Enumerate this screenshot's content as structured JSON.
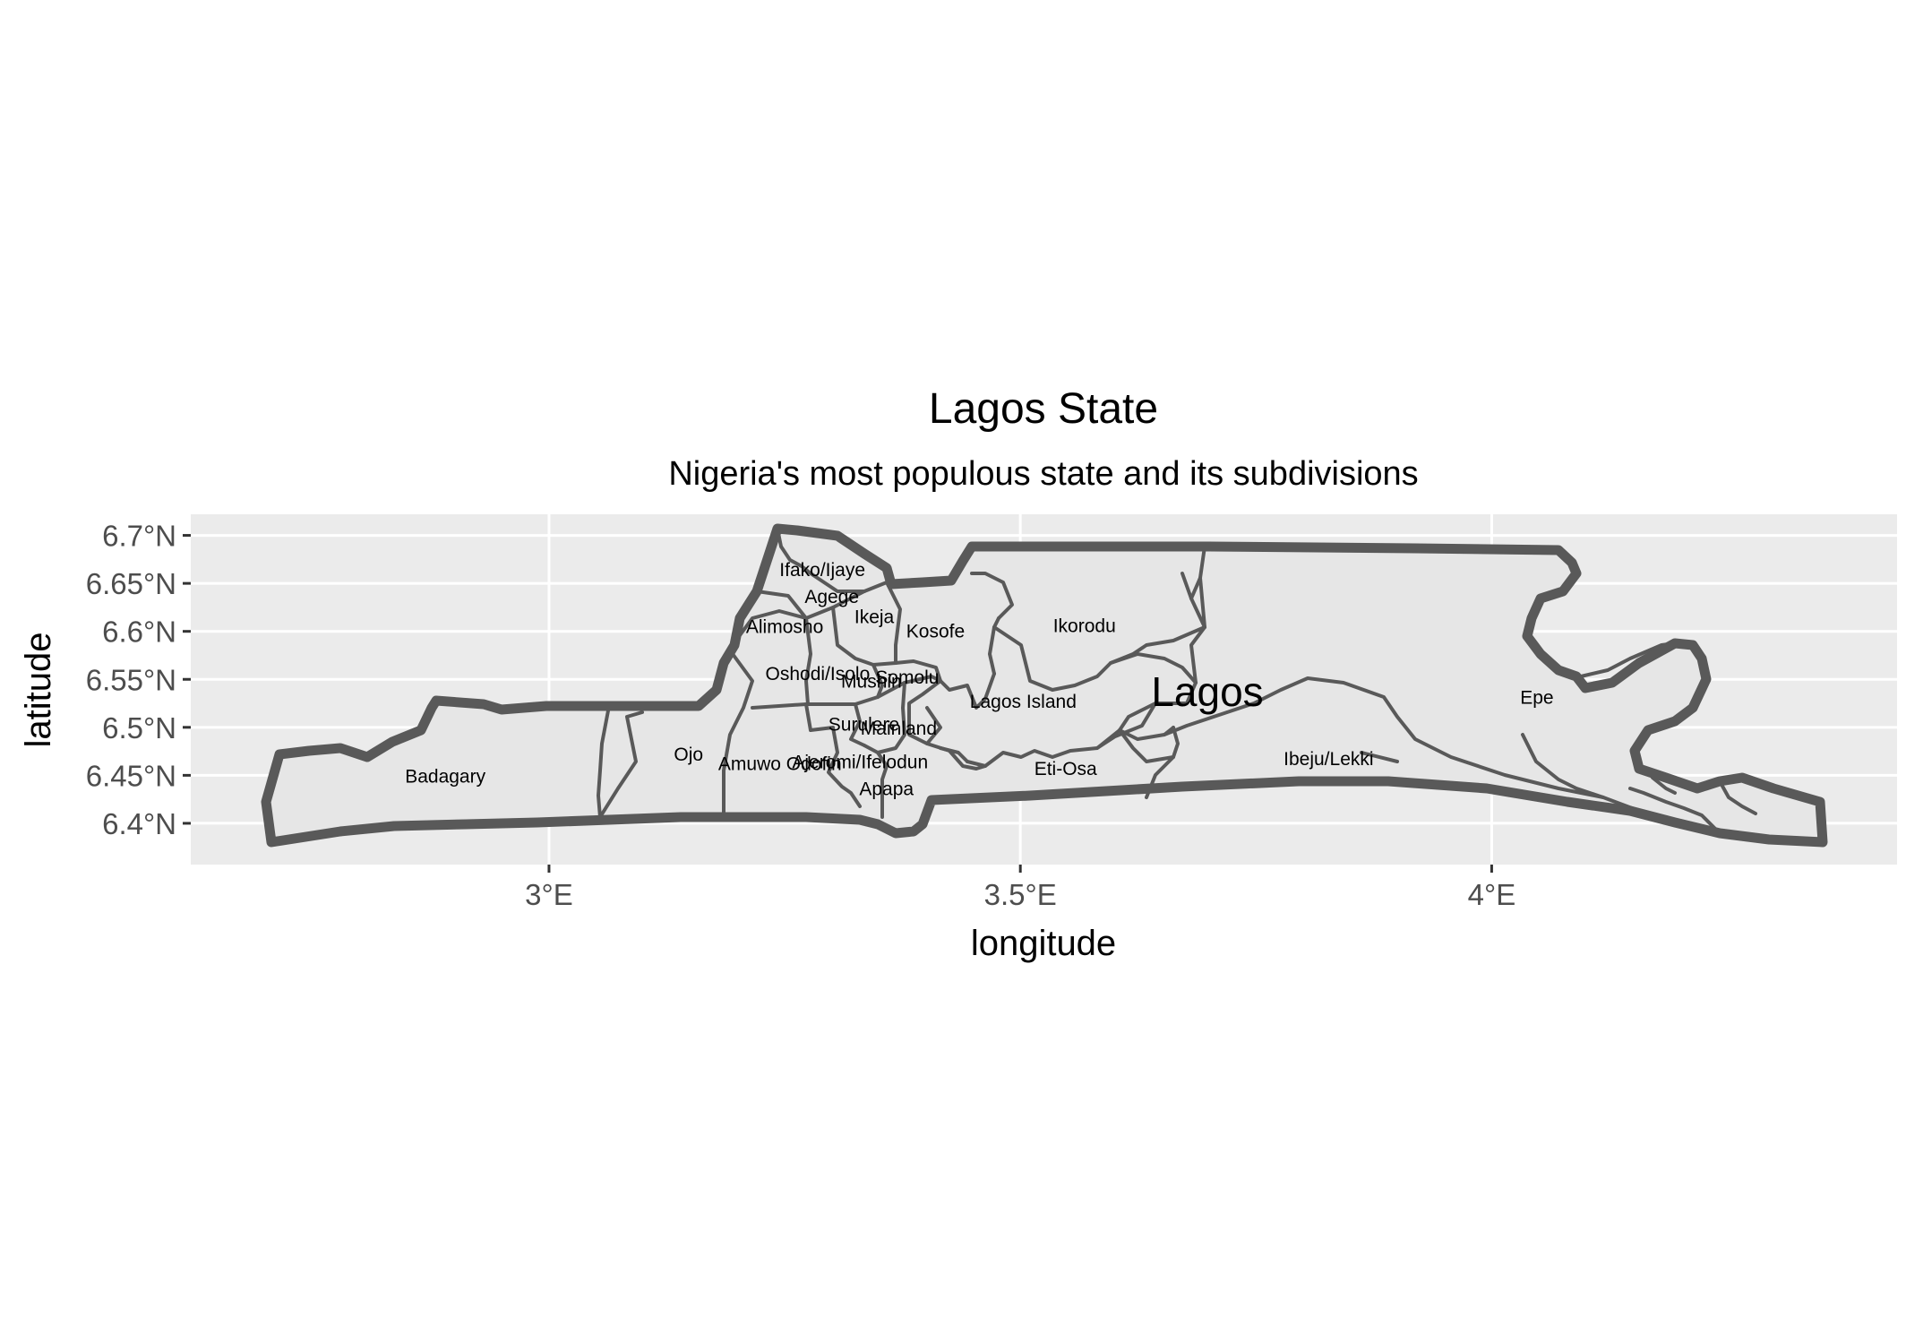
{
  "title": "Lagos State",
  "subtitle": "Nigeria's most populous state and its subdivisions",
  "map": {
    "type": "choropleth-outline",
    "state_label": "Lagos",
    "colors": {
      "panel_background": "#ebebeb",
      "gridline": "#ffffff",
      "region_fill": "#e6e6e6",
      "region_stroke": "#595959",
      "state_outline": "#595959"
    },
    "xaxis": {
      "label": "longitude",
      "range": [
        2.62,
        4.43
      ],
      "ticks": [
        {
          "value": 3.0,
          "label": "3°E"
        },
        {
          "value": 3.5,
          "label": "3.5°E"
        },
        {
          "value": 4.0,
          "label": "4°E"
        }
      ]
    },
    "yaxis": {
      "label": "latitude",
      "range": [
        6.357,
        6.722
      ],
      "ticks": [
        {
          "value": 6.4,
          "label": "6.4°N"
        },
        {
          "value": 6.45,
          "label": "6.45°N"
        },
        {
          "value": 6.5,
          "label": "6.5°N"
        },
        {
          "value": 6.55,
          "label": "6.55°N"
        },
        {
          "value": 6.6,
          "label": "6.6°N"
        },
        {
          "value": 6.65,
          "label": "6.65°N"
        },
        {
          "value": 6.7,
          "label": "6.7°N"
        }
      ]
    },
    "grid": true,
    "subdivisions": [
      {
        "name": "Ifako/Ijaye",
        "lon": 3.29,
        "lat": 6.664
      },
      {
        "name": "Agege",
        "lon": 3.3,
        "lat": 6.636
      },
      {
        "name": "Ikeja",
        "lon": 3.345,
        "lat": 6.615
      },
      {
        "name": "Alimosho",
        "lon": 3.25,
        "lat": 6.605
      },
      {
        "name": "Kosofe",
        "lon": 3.41,
        "lat": 6.6
      },
      {
        "name": "Ikorodu",
        "lon": 3.568,
        "lat": 6.606
      },
      {
        "name": "Oshodi/Isolo",
        "lon": 3.285,
        "lat": 6.556
      },
      {
        "name": "Somolu",
        "lon": 3.38,
        "lat": 6.552
      },
      {
        "name": "Mushin",
        "lon": 3.342,
        "lat": 6.548
      },
      {
        "name": "Lagos Island",
        "lon": 3.503,
        "lat": 6.527
      },
      {
        "name": "Epe",
        "lon": 4.048,
        "lat": 6.531
      },
      {
        "name": "Surulere",
        "lon": 3.334,
        "lat": 6.503
      },
      {
        "name": "Mainland",
        "lon": 3.371,
        "lat": 6.499
      },
      {
        "name": "Ojo",
        "lon": 3.148,
        "lat": 6.472
      },
      {
        "name": "Badagary",
        "lon": 2.89,
        "lat": 6.449
      },
      {
        "name": "Amuwo Odofin",
        "lon": 3.245,
        "lat": 6.462
      },
      {
        "name": "Ajeromi/Ifelodun",
        "lon": 3.33,
        "lat": 6.464
      },
      {
        "name": "Eti-Osa",
        "lon": 3.548,
        "lat": 6.457
      },
      {
        "name": "Ibeju/Lekki",
        "lon": 3.827,
        "lat": 6.467
      },
      {
        "name": "Apapa",
        "lon": 3.358,
        "lat": 6.436
      }
    ]
  }
}
